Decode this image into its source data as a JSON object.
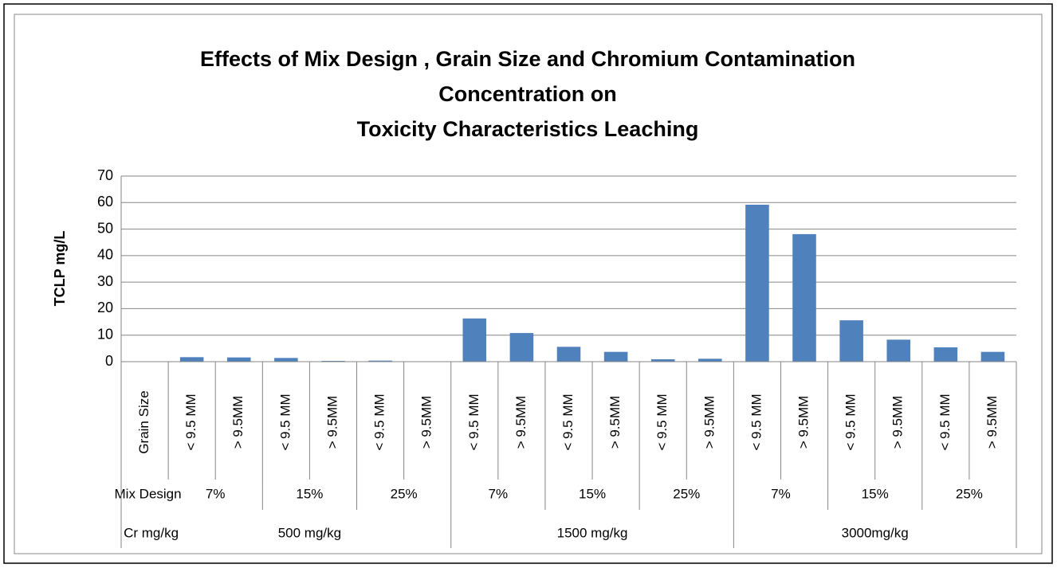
{
  "chart_data": {
    "type": "bar",
    "title": [
      "Effects of Mix Design , Grain Size and Chromium   Contamination",
      "Concentration on",
      "Toxicity Characteristics Leaching"
    ],
    "y_label": "TCLP mg/L",
    "categories": [
      "Grain Size",
      "< 9.5 MM",
      "> 9.5MM",
      "< 9.5 MM",
      "> 9.5MM",
      "< 9.5 MM",
      "> 9.5MM",
      "< 9.5 MM",
      "> 9.5MM",
      "< 9.5 MM",
      "> 9.5MM",
      "< 9.5 MM",
      "> 9.5MM",
      "< 9.5 MM",
      "> 9.5MM",
      "< 9.5 MM",
      "> 9.5MM",
      "< 9.5 MM",
      "> 9.5MM"
    ],
    "mix_design": [
      "Mix Design",
      "7%",
      "15%",
      "25%",
      "7%",
      "15%",
      "25%",
      "7%",
      "15%",
      "25%"
    ],
    "cr_concentration": [
      "Cr  mg/kg",
      "500 mg/kg",
      "1500 mg/kg",
      "3000mg/kg"
    ],
    "values": [
      null,
      1.7,
      1.6,
      1.4,
      0.3,
      0.4,
      0.1,
      16.3,
      10.8,
      5.6,
      3.7,
      0.9,
      1.1,
      59.2,
      48.1,
      15.6,
      8.3,
      5.4,
      3.7
    ],
    "color": "#4f81bd",
    "ylim": [
      0,
      70
    ],
    "yticks": [
      0,
      10,
      20,
      30,
      40,
      50,
      60,
      70
    ],
    "grid": true
  }
}
